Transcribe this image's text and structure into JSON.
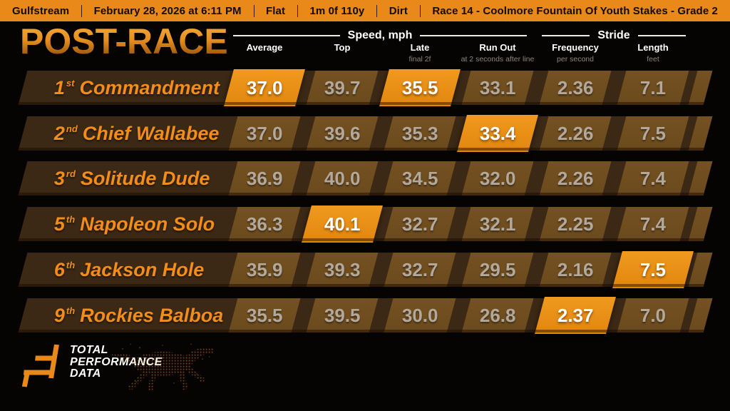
{
  "top_bar": {
    "items": [
      "Gulfstream",
      "February 28, 2026 at 6:11 PM",
      "Flat",
      "1m 0f 110y",
      "Dirt",
      "Race 14 - Coolmore Fountain Of Youth Stakes - Grade 2"
    ]
  },
  "title": "POST-RACE",
  "chart_data": {
    "type": "table",
    "title": "Post-race speed and stride statistics",
    "column_groups": [
      {
        "label": "Speed, mph",
        "columns": [
          "Average",
          "Top",
          "Late",
          "Run Out"
        ]
      },
      {
        "label": "Stride",
        "columns": [
          "Frequency",
          "Length"
        ]
      }
    ],
    "columns": [
      {
        "label": "Average",
        "sub": ""
      },
      {
        "label": "Top",
        "sub": ""
      },
      {
        "label": "Late",
        "sub": "final 2f"
      },
      {
        "label": "Run Out",
        "sub": "at 2 seconds after line"
      },
      {
        "label": "Frequency",
        "sub": "per second"
      },
      {
        "label": "Length",
        "sub": "feet"
      }
    ],
    "rows": [
      {
        "position": "1",
        "ordinal": "st",
        "horse": "Commandment",
        "values": [
          "37.0",
          "39.7",
          "35.5",
          "33.1",
          "2.36",
          "7.1"
        ],
        "highlighted_columns": [
          0,
          2
        ]
      },
      {
        "position": "2",
        "ordinal": "nd",
        "horse": "Chief Wallabee",
        "values": [
          "37.0",
          "39.6",
          "35.3",
          "33.4",
          "2.26",
          "7.5"
        ],
        "highlighted_columns": [
          3
        ]
      },
      {
        "position": "3",
        "ordinal": "rd",
        "horse": "Solitude Dude",
        "values": [
          "36.9",
          "40.0",
          "34.5",
          "32.0",
          "2.26",
          "7.4"
        ],
        "highlighted_columns": []
      },
      {
        "position": "5",
        "ordinal": "th",
        "horse": "Napoleon Solo",
        "values": [
          "36.3",
          "40.1",
          "32.7",
          "32.1",
          "2.25",
          "7.4"
        ],
        "highlighted_columns": [
          1
        ]
      },
      {
        "position": "6",
        "ordinal": "th",
        "horse": "Jackson Hole",
        "values": [
          "35.9",
          "39.3",
          "32.7",
          "29.5",
          "2.16",
          "7.5"
        ],
        "highlighted_columns": [
          5
        ]
      },
      {
        "position": "9",
        "ordinal": "th",
        "horse": "Rockies Balboa",
        "values": [
          "35.5",
          "39.5",
          "30.0",
          "26.8",
          "2.37",
          "7.0"
        ],
        "highlighted_columns": [
          4
        ]
      }
    ]
  },
  "logo": {
    "lines": [
      "TOTAL",
      "PERFORMANCE",
      "DATA"
    ]
  },
  "colors": {
    "accent_orange": "#e8891a",
    "highlight_orange": "#e8891a",
    "row_dark_brown": "#3b2815",
    "cell_brown": "#6e4c1f",
    "value_gray": "#b3a89c",
    "name_orange": "#f28d1a",
    "header_white": "#ffffff"
  }
}
